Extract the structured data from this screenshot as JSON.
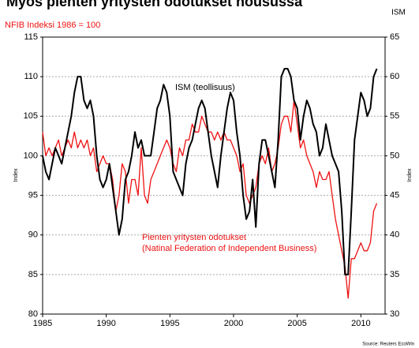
{
  "chart_data": {
    "type": "line",
    "title": "Myös pienten yritysten odotukset nousussa",
    "left_axis_title": "NFIB Indeksi 1986 = 100",
    "right_axis_title": "ISM",
    "y_label": "Index",
    "y2_label": "Index",
    "source": "Source: Reuters EcoWin",
    "annotations": [
      "ISM (teollisuus)",
      "Pienten yritysten odotukset",
      "(Natinal Federation of Independent Business)"
    ],
    "xlim": [
      1985,
      2011.9
    ],
    "xticks": [
      1985,
      1990,
      1995,
      2000,
      2005,
      2010
    ],
    "ylim": [
      80,
      115
    ],
    "yticks": [
      80,
      85,
      90,
      95,
      100,
      105,
      110,
      115
    ],
    "y2lim": [
      30,
      65
    ],
    "y2ticks": [
      30,
      35,
      40,
      45,
      50,
      55,
      60,
      65
    ],
    "grid": true,
    "x": [
      1985,
      1985.25,
      1985.5,
      1985.75,
      1986,
      1986.25,
      1986.5,
      1986.75,
      1987,
      1987.25,
      1987.5,
      1987.75,
      1988,
      1988.25,
      1988.5,
      1988.75,
      1989,
      1989.25,
      1989.5,
      1989.75,
      1990,
      1990.25,
      1990.5,
      1990.75,
      1991,
      1991.25,
      1991.5,
      1991.75,
      1992,
      1992.25,
      1992.5,
      1992.75,
      1993,
      1993.25,
      1993.5,
      1993.75,
      1994,
      1994.25,
      1994.5,
      1994.75,
      1995,
      1995.25,
      1995.5,
      1995.75,
      1996,
      1996.25,
      1996.5,
      1996.75,
      1997,
      1997.25,
      1997.5,
      1997.75,
      1998,
      1998.25,
      1998.5,
      1998.75,
      1999,
      1999.25,
      1999.5,
      1999.75,
      2000,
      2000.25,
      2000.5,
      2000.75,
      2001,
      2001.25,
      2001.5,
      2001.75,
      2002,
      2002.25,
      2002.5,
      2002.75,
      2003,
      2003.25,
      2003.5,
      2003.75,
      2004,
      2004.25,
      2004.5,
      2004.75,
      2005,
      2005.25,
      2005.5,
      2005.75,
      2006,
      2006.25,
      2006.5,
      2006.75,
      2007,
      2007.25,
      2007.5,
      2007.75,
      2008,
      2008.25,
      2008.5,
      2008.75,
      2009,
      2009.25,
      2009.5,
      2009.75,
      2010,
      2010.25,
      2010.5,
      2010.75,
      2011,
      2011.25
    ],
    "series": [
      {
        "name": "ISM (teollisuus)",
        "color": "#000000",
        "axis": "y2",
        "values": [
          50,
          48,
          47,
          49,
          51,
          50,
          49,
          51,
          53,
          55,
          58,
          60,
          60,
          57,
          56,
          57,
          55,
          50,
          47,
          46,
          47,
          49,
          46,
          43,
          40,
          42,
          47,
          48,
          50,
          53,
          51,
          52,
          50,
          50,
          50,
          53,
          56,
          57,
          59,
          58,
          55,
          48,
          47,
          46,
          45,
          49,
          51,
          52,
          54,
          56,
          57,
          56,
          53,
          50,
          48,
          46,
          50,
          53,
          56,
          58,
          57,
          53,
          50,
          45,
          42,
          43,
          47,
          41,
          49,
          52,
          52,
          50,
          48,
          46,
          52,
          60,
          61,
          61,
          60,
          57,
          56,
          52,
          55,
          57,
          56,
          54,
          53,
          50,
          51,
          54,
          52,
          50,
          49,
          48,
          43,
          35,
          35,
          43,
          52,
          55,
          58,
          57,
          55,
          56,
          60,
          61
        ]
      },
      {
        "name": "Pienten yritysten odotukset",
        "color": "#ee1111",
        "values": [
          103,
          100,
          101,
          100,
          101,
          102,
          100,
          101,
          102,
          101,
          103,
          101,
          102,
          101,
          102,
          100,
          101,
          98,
          99,
          100,
          99,
          99,
          97,
          93,
          95,
          99,
          98,
          94,
          97,
          97,
          95,
          101,
          95,
          94,
          97,
          98,
          99,
          100,
          101,
          102,
          101,
          99,
          98,
          101,
          100,
          102,
          102,
          104,
          103,
          103,
          105,
          104,
          103,
          103,
          102,
          103,
          102,
          103,
          102,
          102,
          101,
          100,
          98,
          99,
          95,
          94,
          95,
          96,
          99,
          100,
          99,
          101,
          98,
          99,
          101,
          104,
          105,
          105,
          103,
          107,
          104,
          101,
          102,
          100,
          99,
          98,
          96,
          98,
          97,
          97,
          98,
          95,
          92,
          90,
          88,
          86,
          82,
          87,
          87,
          88,
          89,
          88,
          88,
          89,
          93,
          94
        ]
      }
    ]
  }
}
